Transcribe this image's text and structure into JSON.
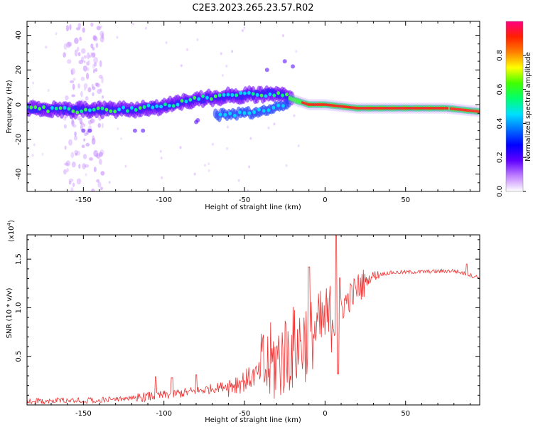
{
  "title": "C2E3.2023.265.23.57.R02",
  "chart_data": [
    {
      "type": "heatmap",
      "xlabel": "Height of straight line (km)",
      "ylabel": "Frequency (Hz)",
      "xlim": [
        -185,
        96
      ],
      "ylim": [
        -50,
        48
      ],
      "xticks": [
        -150,
        -100,
        -50,
        0,
        50
      ],
      "yticks": [
        -40,
        -20,
        0,
        20,
        40
      ],
      "colorbar": {
        "label": "Normalized spectral amplitude",
        "range": [
          0,
          1
        ],
        "ticks": [
          "0.0",
          "0.2",
          "0.4",
          "0.6",
          "0.8"
        ],
        "colors": [
          "#ffffff",
          "#c080ff",
          "#6000ff",
          "#0000ff",
          "#0070ff",
          "#00e0ff",
          "#00ff70",
          "#40ff00",
          "#ffff00",
          "#ff8000",
          "#ff2000",
          "#ff0080"
        ]
      },
      "ridge": [
        {
          "x": -185,
          "y": -2
        },
        {
          "x": -160,
          "y": -3
        },
        {
          "x": -140,
          "y": -3
        },
        {
          "x": -120,
          "y": -3
        },
        {
          "x": -100,
          "y": -1
        },
        {
          "x": -80,
          "y": 3
        },
        {
          "x": -60,
          "y": 5
        },
        {
          "x": -40,
          "y": 6
        },
        {
          "x": -30,
          "y": 7
        },
        {
          "x": -20,
          "y": 3
        },
        {
          "x": -10,
          "y": 0
        },
        {
          "x": 0,
          "y": 0
        },
        {
          "x": 20,
          "y": -2
        },
        {
          "x": 50,
          "y": -2
        },
        {
          "x": 75,
          "y": -2
        },
        {
          "x": 96,
          "y": -4
        }
      ],
      "lower_branch": [
        {
          "x": -65,
          "y": -6
        },
        {
          "x": -50,
          "y": -5
        },
        {
          "x": -35,
          "y": -3
        },
        {
          "x": -25,
          "y": 0
        }
      ]
    },
    {
      "type": "line",
      "xlabel": "Height of straight line (km)",
      "ylabel": "SNR (10 * v/v)",
      "scale_label": "(x10",
      "scale_exponent": "4",
      "scale_close": ")",
      "xlim": [
        -185,
        96
      ],
      "ylim": [
        0,
        1.75
      ],
      "xticks": [
        -150,
        -100,
        -50,
        0,
        50
      ],
      "yticks": [
        0.5,
        1.0,
        1.5
      ],
      "ytick_labels": [
        "0.5",
        "1.0",
        "1.5"
      ],
      "color": "#ee3333",
      "baseline": [
        {
          "x": -185,
          "y": 0.04
        },
        {
          "x": -140,
          "y": 0.05
        },
        {
          "x": -120,
          "y": 0.07
        },
        {
          "x": -100,
          "y": 0.1
        },
        {
          "x": -80,
          "y": 0.14
        },
        {
          "x": -60,
          "y": 0.2
        },
        {
          "x": -50,
          "y": 0.25
        },
        {
          "x": -40,
          "y": 0.33
        },
        {
          "x": -30,
          "y": 0.45
        },
        {
          "x": -20,
          "y": 0.58
        },
        {
          "x": -10,
          "y": 0.7
        },
        {
          "x": 0,
          "y": 0.85
        },
        {
          "x": 10,
          "y": 1.0
        },
        {
          "x": 20,
          "y": 1.2
        },
        {
          "x": 30,
          "y": 1.33
        },
        {
          "x": 40,
          "y": 1.36
        },
        {
          "x": 60,
          "y": 1.37
        },
        {
          "x": 80,
          "y": 1.38
        },
        {
          "x": 96,
          "y": 1.31
        }
      ],
      "peaks": [
        {
          "x": -105,
          "y": 0.29
        },
        {
          "x": -95,
          "y": 0.28
        },
        {
          "x": -80,
          "y": 0.31
        },
        {
          "x": -10,
          "y": 1.42
        },
        {
          "x": 7,
          "y": 1.75
        },
        {
          "x": 8,
          "y": 0.32
        },
        {
          "x": 88,
          "y": 1.45
        }
      ]
    }
  ]
}
